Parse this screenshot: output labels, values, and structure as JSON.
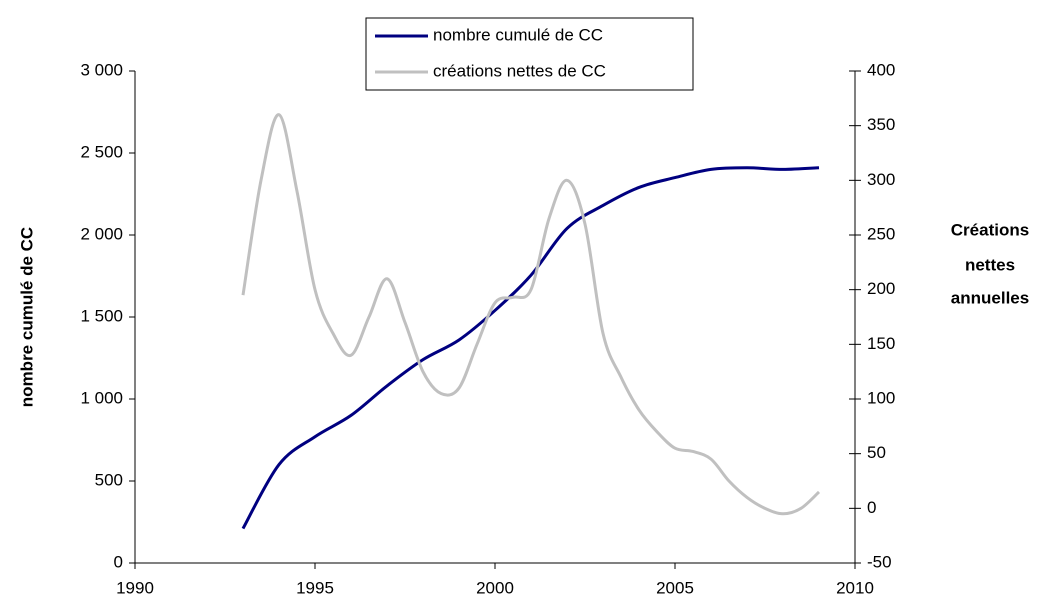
{
  "chart_data": {
    "type": "line",
    "ylabel": "nombre cumulé de CC",
    "y2label": [
      "Créations",
      "nettes",
      "annuelles"
    ],
    "xlim": [
      1990,
      2010
    ],
    "xticks": [
      1990,
      1995,
      2000,
      2005,
      2010
    ],
    "ylim": [
      0,
      3000
    ],
    "yticks": [
      0,
      500,
      {
        "value": 1000,
        "label": "1 000"
      },
      {
        "value": 1500,
        "label": "1 500"
      },
      {
        "value": 2000,
        "label": "2 000"
      },
      {
        "value": 2500,
        "label": "2 500"
      },
      {
        "value": 3000,
        "label": "3 000"
      }
    ],
    "y2lim": [
      -50,
      400
    ],
    "y2ticks": [
      -50,
      0,
      50,
      100,
      150,
      200,
      250,
      300,
      350,
      400
    ],
    "series": [
      {
        "name": "nombre cumulé de CC",
        "color": "#000080",
        "x": [
          1993,
          1994,
          1995,
          1996,
          1997,
          1998,
          1999,
          2000,
          2001,
          2002,
          2003,
          2004,
          2005,
          2006,
          2007,
          2008,
          2009
        ],
        "values": [
          210,
          600,
          770,
          900,
          1080,
          1240,
          1360,
          1540,
          1755,
          2040,
          2180,
          2290,
          2350,
          2400,
          2410,
          2400,
          2410
        ]
      },
      {
        "name": "créations nettes de CC",
        "color": "#c0c0c0",
        "axis": "y2",
        "x": [
          1993,
          1993.5,
          1994,
          1994.5,
          1995,
          1995.5,
          1996,
          1996.5,
          1997,
          1997.5,
          1998,
          1998.5,
          1999,
          1999.5,
          2000,
          2000.5,
          2001,
          2001.5,
          2002,
          2002.5,
          2003,
          2003.5,
          2004,
          2004.5,
          2005,
          2005.5,
          2006,
          2006.5,
          2007,
          2007.5,
          2008,
          2008.5,
          2009
        ],
        "values": [
          195,
          300,
          360,
          290,
          200,
          160,
          140,
          175,
          210,
          170,
          125,
          105,
          110,
          150,
          188,
          193,
          200,
          265,
          300,
          260,
          160,
          120,
          90,
          70,
          55,
          52,
          45,
          25,
          10,
          0,
          -5,
          0,
          15
        ]
      }
    ]
  }
}
